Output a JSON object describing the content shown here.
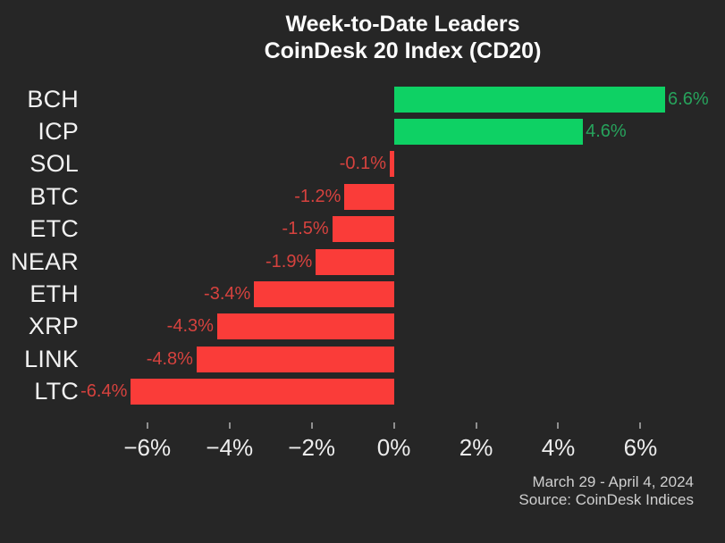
{
  "chart_data": {
    "type": "bar",
    "orientation": "horizontal",
    "title": "Week-to-Date Leaders",
    "subtitle": "CoinDesk 20 Index (CD20)",
    "categories": [
      "BCH",
      "ICP",
      "SOL",
      "BTC",
      "ETC",
      "NEAR",
      "ETH",
      "XRP",
      "LINK",
      "LTC"
    ],
    "values": [
      6.6,
      4.6,
      -0.1,
      -1.2,
      -1.5,
      -1.9,
      -3.4,
      -4.3,
      -4.8,
      -6.4
    ],
    "value_labels": [
      "6.6%",
      "4.6%",
      "-0.1%",
      "-1.2%",
      "-1.5%",
      "-1.9%",
      "-3.4%",
      "-4.3%",
      "-4.8%",
      "-6.4%"
    ],
    "x_ticks": [
      -6,
      -4,
      -2,
      0,
      2,
      4,
      6
    ],
    "x_tick_labels": [
      "−6%",
      "−4%",
      "−2%",
      "0%",
      "2%",
      "4%",
      "6%"
    ],
    "xlim": [
      -7.3,
      7.6
    ],
    "grid": false,
    "legend": null,
    "colors": {
      "positive_bar": "#0ed164",
      "negative_bar": "#fa3c39",
      "positive_label": "#27a35c",
      "negative_label": "#d6423e",
      "background": "#262626",
      "title_text": "#fcfcfc",
      "category_text": "#f2f2f2",
      "tick_text": "#ededed",
      "tick_mark": "#8f8f8f",
      "footer_text": "#cfcfcf"
    }
  },
  "footer": {
    "date_range": "March 29 - April 4, 2024",
    "source": "Source: CoinDesk Indices"
  }
}
